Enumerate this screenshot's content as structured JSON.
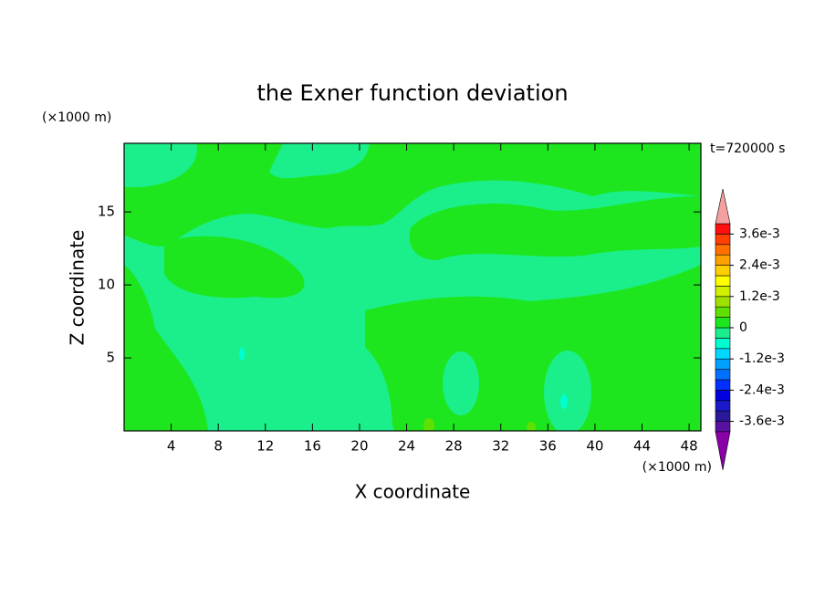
{
  "chart_data": {
    "type": "contour",
    "title": "the Exner function deviation",
    "xlabel": "X coordinate",
    "ylabel": "Z coordinate",
    "xunit": "(×1000 m)",
    "yunit": "(×1000 m)",
    "annotation": "t=720000 s",
    "xlim": [
      0,
      49
    ],
    "ylim": [
      0,
      19.7
    ],
    "xticks": [
      4,
      8,
      12,
      16,
      20,
      24,
      28,
      32,
      36,
      40,
      44,
      48
    ],
    "yticks": [
      5,
      10,
      15
    ],
    "colorbar": {
      "levels": [
        -0.004,
        -0.0036,
        -0.0032,
        -0.0028,
        -0.0024,
        -0.002,
        -0.0016,
        -0.0012,
        -0.0008,
        -0.0004,
        0,
        0.0004,
        0.0008,
        0.0012,
        0.0016,
        0.002,
        0.0024,
        0.0028,
        0.0032,
        0.0036,
        0.004
      ],
      "colors": [
        "#5a10a0",
        "#2a1a9a",
        "#1a1ac8",
        "#0000e0",
        "#0030ff",
        "#0070ff",
        "#00a0ff",
        "#00d8ff",
        "#00ffd0",
        "#1aef8c",
        "#1ee61e",
        "#60e000",
        "#a0e000",
        "#d0f000",
        "#ffff00",
        "#ffd000",
        "#ffa000",
        "#ff7000",
        "#ff4000",
        "#ff1010"
      ],
      "extend_colors": [
        "#8a00a8",
        "#f4a0a0"
      ],
      "ticks": [
        {
          "value": 0.0036,
          "label": "3.6e-3"
        },
        {
          "value": 0.0024,
          "label": "2.4e-3"
        },
        {
          "value": 0.0012,
          "label": "1.2e-3"
        },
        0,
        {
          "value": -0.0012,
          "label": "-1.2e-3"
        },
        {
          "value": -0.0024,
          "label": "-2.4e-3"
        },
        {
          "value": -0.0036,
          "label": "-3.6e-3"
        }
      ]
    }
  }
}
